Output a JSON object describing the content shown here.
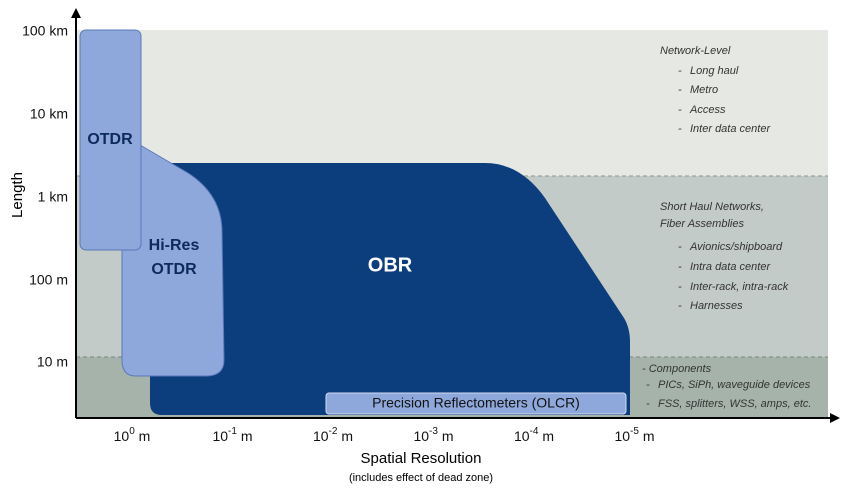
{
  "y_axis": {
    "label": "Length",
    "ticks": [
      "100 km",
      "10 km",
      "1 km",
      "100 m",
      "10 m"
    ]
  },
  "x_axis": {
    "label": "Spatial Resolution",
    "sublabel": "(includes effect of dead zone)",
    "ticks": [
      {
        "base": "10",
        "exponent": "0",
        "unit": "m"
      },
      {
        "base": "10",
        "exponent": "-1",
        "unit": "m"
      },
      {
        "base": "10",
        "exponent": "-2",
        "unit": "m"
      },
      {
        "base": "10",
        "exponent": "-3",
        "unit": "m"
      },
      {
        "base": "10",
        "exponent": "-4",
        "unit": "m"
      },
      {
        "base": "10",
        "exponent": "-5",
        "unit": "m"
      }
    ]
  },
  "regions": {
    "otdr": "OTDR",
    "hires_line1": "Hi-Res",
    "hires_line2": "OTDR",
    "obr": "OBR",
    "olcr": "Precision Reflectometers (OLCR)"
  },
  "zones": [
    {
      "title": "Network-Level",
      "items": [
        "Long haul",
        "Metro",
        "Access",
        "Inter data center"
      ]
    },
    {
      "title": "Short Haul Networks,",
      "title2": "Fiber Assemblies",
      "items": [
        "Avionics/shipboard",
        "Intra data center",
        "Inter-rack, intra-rack",
        "Harnesses"
      ]
    },
    {
      "title": "Components",
      "items": [
        "PICs, SiPh, waveguide devices",
        "FSS, splitters, WSS,  amps, etc."
      ]
    }
  ]
}
